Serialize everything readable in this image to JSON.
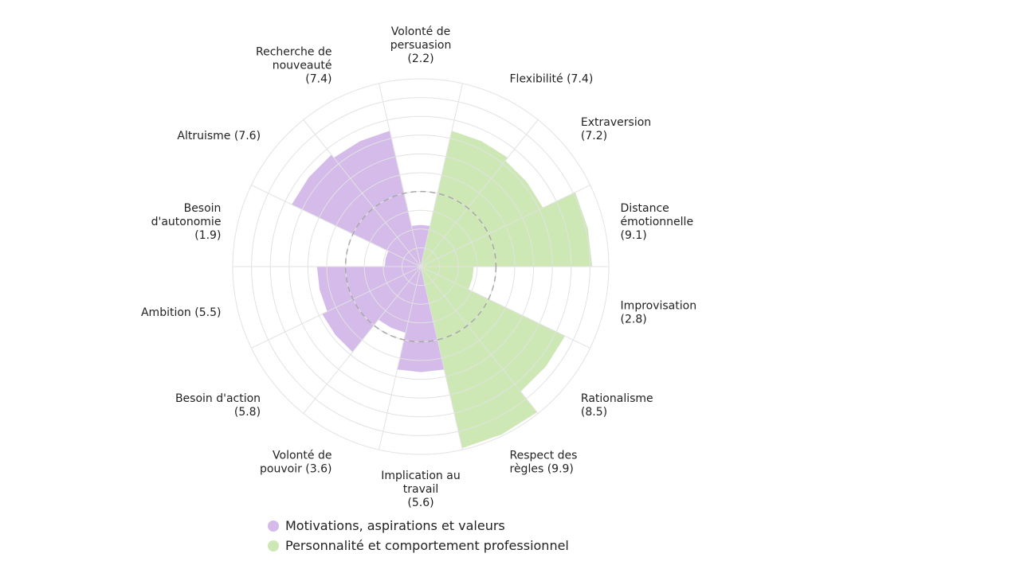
{
  "chart_data": {
    "type": "radar",
    "title": "",
    "rmax": 10,
    "grid_levels": 10,
    "reference_level": 4,
    "axes": [
      {
        "lines": [
          "Volonté de",
          "persuasion",
          "(2.2)"
        ],
        "value": 2.2,
        "series": 0
      },
      {
        "lines": [
          "Flexibilité (7.4)"
        ],
        "value": 7.4,
        "series": 1
      },
      {
        "lines": [
          "Extraversion",
          "(7.2)"
        ],
        "value": 7.2,
        "series": 1
      },
      {
        "lines": [
          "Distance",
          "émotionnelle",
          "(9.1)"
        ],
        "value": 9.1,
        "series": 1
      },
      {
        "lines": [
          "Improvisation",
          "(2.8)"
        ],
        "value": 2.8,
        "series": 1
      },
      {
        "lines": [
          "Rationalisme",
          "(8.5)"
        ],
        "value": 8.5,
        "series": 1
      },
      {
        "lines": [
          "Respect des",
          "règles (9.9)"
        ],
        "value": 9.9,
        "series": 1
      },
      {
        "lines": [
          "Implication au",
          "travail",
          "(5.6)"
        ],
        "value": 5.6,
        "series": 0
      },
      {
        "lines": [
          "Volonté de",
          "pouvoir (3.6)"
        ],
        "value": 3.6,
        "series": 0
      },
      {
        "lines": [
          "Besoin d'action",
          "(5.8)"
        ],
        "value": 5.8,
        "series": 0
      },
      {
        "lines": [
          "Ambition (5.5)"
        ],
        "value": 5.5,
        "series": 0
      },
      {
        "lines": [
          "Besoin",
          "d'autonomie",
          "(1.9)"
        ],
        "value": 1.9,
        "series": 0
      },
      {
        "lines": [
          "Altruisme (7.6)"
        ],
        "value": 7.6,
        "series": 0
      },
      {
        "lines": [
          "Recherche de",
          "nouveauté",
          "(7.4)"
        ],
        "value": 7.4,
        "series": 0
      }
    ],
    "series": [
      {
        "name": "Motivations, aspirations et valeurs",
        "color": "#d4bbe9"
      },
      {
        "name": "Personnalité et comportement professionnel",
        "color": "#cde8b4"
      }
    ],
    "legend_position": "bottom"
  }
}
